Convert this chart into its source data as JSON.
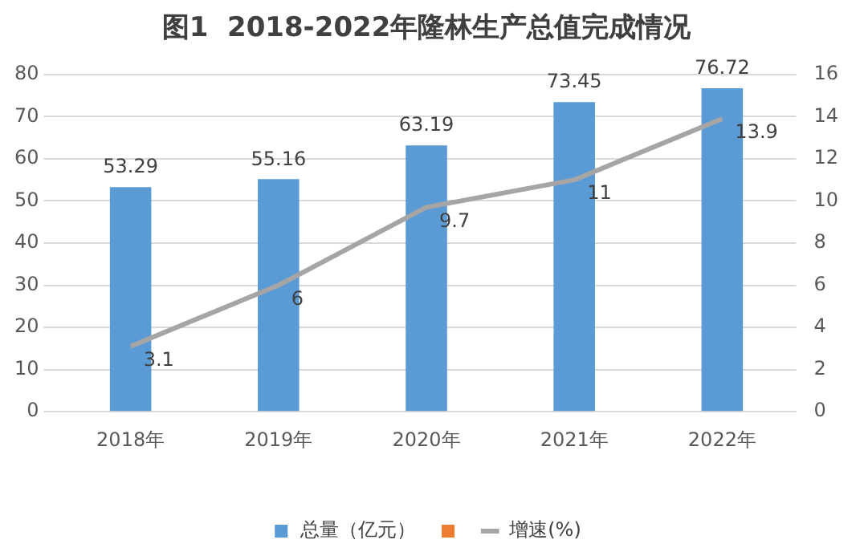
{
  "chart_data": {
    "type": "bar",
    "title": "图1  2018-2022年隆林生产总值完成情况",
    "categories": [
      "2018年",
      "2019年",
      "2020年",
      "2021年",
      "2022年"
    ],
    "series": [
      {
        "name": "总量（亿元）",
        "color": "#5b9bd5",
        "values": [
          53.29,
          55.16,
          63.19,
          73.45,
          76.72
        ]
      },
      {
        "color": "#ed7d31",
        "values": [
          null,
          null,
          null,
          null,
          null
        ]
      },
      {
        "name": "增速(%)",
        "type": "line",
        "axis": "y2",
        "color": "#a5a5a5",
        "values": [
          3.1,
          6,
          9.7,
          11,
          13.9
        ],
        "marker": "none"
      }
    ],
    "ylim": [
      0,
      80
    ],
    "yticks": [
      0,
      10,
      20,
      30,
      40,
      50,
      60,
      70,
      80
    ],
    "y2lim": [
      0,
      16
    ],
    "y2ticks": [
      0,
      2,
      4,
      6,
      8,
      10,
      12,
      14,
      16
    ],
    "grid": "y",
    "legend": "bottom",
    "data_labels": true
  }
}
